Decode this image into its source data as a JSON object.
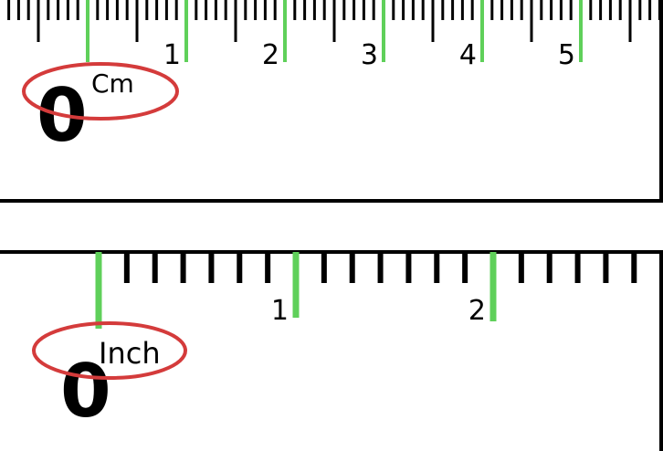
{
  "cm_ruler": {
    "unit": "Cm",
    "zero": "0",
    "numbers": [
      "1",
      "2",
      "3",
      "4",
      "5"
    ],
    "highlight_color": "#5fd05a",
    "circle_color": "#d43b3b"
  },
  "inch_ruler": {
    "unit": "Inch",
    "zero": "0",
    "numbers": [
      "1",
      "2"
    ],
    "highlight_color": "#5fd05a",
    "circle_color": "#d43b3b"
  }
}
